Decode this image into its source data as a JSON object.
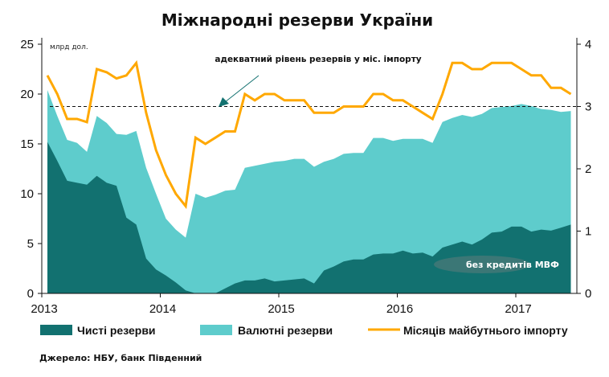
{
  "chart_data": {
    "type": "area",
    "title": "Міжнародні резерви України",
    "ylabel": "млрд дол.",
    "ylim": [
      0,
      25
    ],
    "yticks": [
      0,
      5,
      10,
      15,
      20,
      25
    ],
    "y2lim": [
      0,
      4
    ],
    "y2ticks": [
      0,
      1,
      2,
      3,
      4
    ],
    "xticks": [
      "2013",
      "2014",
      "2015",
      "2016",
      "2017"
    ],
    "x_start": "2013-01",
    "x_frequency": "monthly",
    "series": [
      {
        "name": "Валютні резерви",
        "type": "area",
        "axis": "left",
        "color": "#5ECCCC",
        "values": [
          20.4,
          17.8,
          15.4,
          15.1,
          14.2,
          17.8,
          17.1,
          16.0,
          15.9,
          16.3,
          12.6,
          10.0,
          7.5,
          6.4,
          5.6,
          10.0,
          9.6,
          9.9,
          10.3,
          10.4,
          12.6,
          12.8,
          13.0,
          13.2,
          13.3,
          13.5,
          13.5,
          12.7,
          13.2,
          13.5,
          14.0,
          14.1,
          14.1,
          15.6,
          15.6,
          15.3,
          15.5,
          15.5,
          15.5,
          15.1,
          17.2,
          17.6,
          17.9,
          17.7,
          18.0,
          18.6,
          18.7,
          18.8,
          19.0,
          18.8,
          18.5,
          18.4,
          18.2,
          18.3
        ]
      },
      {
        "name": "Чисті резерви",
        "type": "area",
        "axis": "left",
        "color": "#127170",
        "values": [
          15.2,
          13.3,
          11.3,
          11.1,
          10.9,
          11.8,
          11.1,
          10.8,
          7.6,
          6.9,
          3.5,
          2.4,
          1.8,
          1.1,
          0.3,
          0.0,
          0.0,
          0.0,
          0.5,
          1.0,
          1.3,
          1.3,
          1.5,
          1.2,
          1.3,
          1.4,
          1.5,
          1.0,
          2.3,
          2.7,
          3.2,
          3.4,
          3.4,
          3.9,
          4.0,
          4.0,
          4.3,
          4.0,
          4.1,
          3.7,
          4.6,
          4.9,
          5.2,
          4.9,
          5.4,
          6.1,
          6.2,
          6.7,
          6.7,
          6.2,
          6.4,
          6.3,
          6.6,
          6.9
        ]
      },
      {
        "name": "Місяців майбутнього імпорту",
        "type": "line",
        "axis": "right",
        "color": "#FFA800",
        "values": [
          3.5,
          3.2,
          2.8,
          2.8,
          2.75,
          3.6,
          3.55,
          3.45,
          3.5,
          3.7,
          2.9,
          2.3,
          1.9,
          1.6,
          1.4,
          2.5,
          2.4,
          2.5,
          2.6,
          2.6,
          3.2,
          3.1,
          3.2,
          3.2,
          3.1,
          3.1,
          3.1,
          2.9,
          2.9,
          2.9,
          3.0,
          3.0,
          3.0,
          3.2,
          3.2,
          3.1,
          3.1,
          3.0,
          2.9,
          2.8,
          3.2,
          3.7,
          3.7,
          3.6,
          3.6,
          3.7,
          3.7,
          3.7,
          3.6,
          3.5,
          3.5,
          3.3,
          3.3,
          3.2
        ]
      }
    ],
    "reference_line": {
      "label": "адекватний рівень резервів у міс. імпорту",
      "axis": "right",
      "value": 3
    },
    "annotations": [
      "без кредитів МВФ"
    ],
    "legend": {
      "placement": "bottom",
      "items": [
        "Чисті резерви",
        "Валютні резерви",
        "Місяців майбутнього імпорту"
      ]
    },
    "source": "Джерело: НБУ, банк Південний",
    "grid": false
  }
}
